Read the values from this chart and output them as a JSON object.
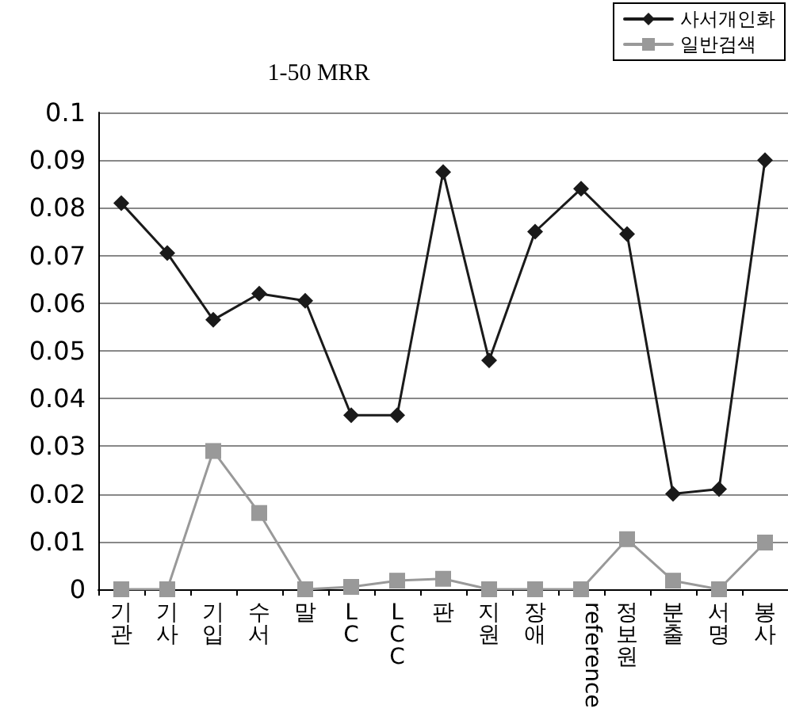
{
  "chart_data": {
    "type": "line",
    "title": "1-50 MRR",
    "categories": [
      "기관",
      "기사",
      "기입",
      "수서",
      "말",
      "LC",
      "LCC",
      "판",
      "지원",
      "장애",
      "reference",
      "정보원",
      "분출",
      "서명",
      "봉사"
    ],
    "series": [
      {
        "name": "사서개인화",
        "color": "#1a1a1a",
        "marker": "diamond",
        "values": [
          0.081,
          0.0705,
          0.0565,
          0.062,
          0.0605,
          0.0365,
          0.0365,
          0.0875,
          0.048,
          0.075,
          0.084,
          0.0745,
          0.02,
          0.021,
          0.09
        ]
      },
      {
        "name": "일반검색",
        "color": "#999999",
        "marker": "square",
        "values": [
          0,
          0,
          0.029,
          0.016,
          0,
          0.0005,
          0.0018,
          0.0022,
          0,
          0,
          0,
          0.0105,
          0.0018,
          0,
          0.0098
        ]
      }
    ],
    "ylim": [
      0,
      0.1
    ],
    "yticks": [
      0,
      0.01,
      0.02,
      0.03,
      0.04,
      0.05,
      0.06,
      0.07,
      0.08,
      0.09,
      0.1
    ],
    "grid": "y",
    "legend": "top right",
    "line_style": "solid"
  }
}
